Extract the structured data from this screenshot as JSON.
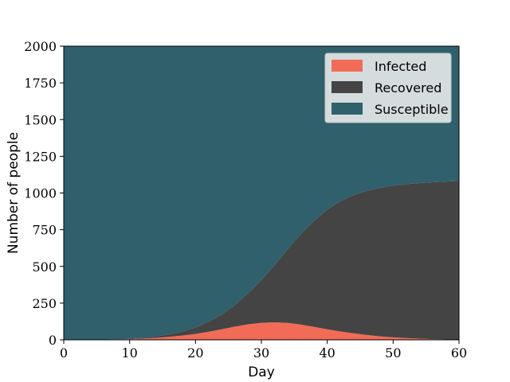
{
  "chart_data": {
    "type": "area",
    "stacked": true,
    "xlabel": "Day",
    "ylabel": "Number of people",
    "xlim": [
      0,
      60
    ],
    "ylim": [
      0,
      2000
    ],
    "xticks": [
      0,
      10,
      20,
      30,
      40,
      50,
      60
    ],
    "yticks": [
      0,
      250,
      500,
      750,
      1000,
      1250,
      1500,
      1750,
      2000
    ],
    "grid": false,
    "legend_position": "top-right",
    "x": [
      0,
      4,
      8,
      10,
      12,
      14,
      16,
      18,
      20,
      22,
      24,
      26,
      28,
      30,
      32,
      34,
      36,
      38,
      40,
      42,
      44,
      46,
      48,
      50,
      52,
      54,
      56,
      58,
      60
    ],
    "series": [
      {
        "name": "Infected",
        "color": "#f26b56",
        "values": [
          0,
          1,
          3,
          5,
          8,
          13,
          20,
          29,
          40,
          55,
          72,
          90,
          106,
          116,
          119,
          115,
          104,
          88,
          72,
          57,
          44,
          33,
          24,
          17,
          12,
          8,
          5,
          3,
          2
        ]
      },
      {
        "name": "Recovered",
        "color": "#444444",
        "values": [
          0,
          0,
          1,
          2,
          5,
          10,
          17,
          28,
          44,
          68,
          101,
          148,
          212,
          290,
          390,
          502,
          618,
          723,
          815,
          888,
          942,
          982,
          1012,
          1033,
          1048,
          1060,
          1068,
          1075,
          1080
        ]
      },
      {
        "name": "Susceptible",
        "color": "#2f606b",
        "values": [
          2000,
          1999,
          1996,
          1993,
          1987,
          1977,
          1963,
          1943,
          1916,
          1877,
          1827,
          1762,
          1682,
          1594,
          1491,
          1383,
          1278,
          1189,
          1113,
          1055,
          1014,
          985,
          964,
          950,
          940,
          932,
          927,
          922,
          918
        ]
      }
    ]
  }
}
